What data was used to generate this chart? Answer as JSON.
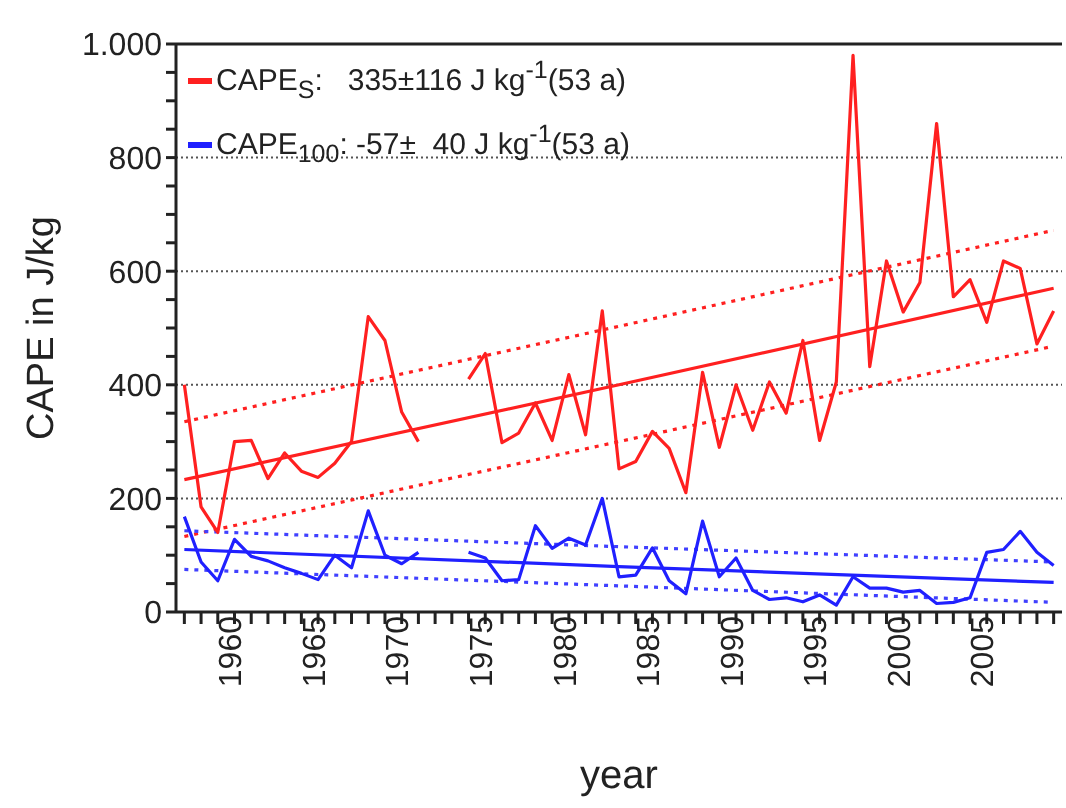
{
  "chart_data": {
    "type": "line",
    "xlabel": "year",
    "ylabel": "CAPE in J/kg",
    "x": [
      1957,
      1958,
      1959,
      1960,
      1961,
      1962,
      1963,
      1964,
      1965,
      1966,
      1967,
      1968,
      1969,
      1970,
      1971,
      1972,
      1973,
      1974,
      1975,
      1976,
      1977,
      1978,
      1979,
      1980,
      1981,
      1982,
      1983,
      1984,
      1985,
      1986,
      1987,
      1988,
      1989,
      1990,
      1991,
      1992,
      1993,
      1994,
      1995,
      1996,
      1997,
      1998,
      1999,
      2000,
      2001,
      2002,
      2003,
      2004,
      2005,
      2006,
      2007,
      2008,
      2009
    ],
    "xlim": [
      1956.5,
      2009.5
    ],
    "xticks": [
      {
        "value": 1957,
        "label": null
      },
      {
        "value": 1958,
        "label": null
      },
      {
        "value": 1959,
        "label": null
      },
      1960,
      {
        "value": 1961,
        "label": null
      },
      {
        "value": 1962,
        "label": null
      },
      {
        "value": 1963,
        "label": null
      },
      {
        "value": 1964,
        "label": null
      },
      1965,
      {
        "value": 1966,
        "label": null
      },
      {
        "value": 1967,
        "label": null
      },
      {
        "value": 1968,
        "label": null
      },
      {
        "value": 1969,
        "label": null
      },
      1970,
      {
        "value": 1971,
        "label": null
      },
      {
        "value": 1972,
        "label": null
      },
      {
        "value": 1973,
        "label": null
      },
      {
        "value": 1974,
        "label": null
      },
      1975,
      {
        "value": 1976,
        "label": null
      },
      {
        "value": 1977,
        "label": null
      },
      {
        "value": 1978,
        "label": null
      },
      {
        "value": 1979,
        "label": null
      },
      1980,
      {
        "value": 1981,
        "label": null
      },
      {
        "value": 1982,
        "label": null
      },
      {
        "value": 1983,
        "label": null
      },
      {
        "value": 1984,
        "label": null
      },
      1985,
      {
        "value": 1986,
        "label": null
      },
      {
        "value": 1987,
        "label": null
      },
      {
        "value": 1988,
        "label": null
      },
      {
        "value": 1989,
        "label": null
      },
      1990,
      {
        "value": 1991,
        "label": null
      },
      {
        "value": 1992,
        "label": null
      },
      {
        "value": 1993,
        "label": null
      },
      {
        "value": 1994,
        "label": null
      },
      1995,
      {
        "value": 1996,
        "label": null
      },
      {
        "value": 1997,
        "label": null
      },
      {
        "value": 1998,
        "label": null
      },
      {
        "value": 1999,
        "label": null
      },
      2000,
      {
        "value": 2001,
        "label": null
      },
      {
        "value": 2002,
        "label": null
      },
      {
        "value": 2003,
        "label": null
      },
      {
        "value": 2004,
        "label": null
      },
      2005,
      {
        "value": 2006,
        "label": null
      },
      {
        "value": 2007,
        "label": null
      },
      {
        "value": 2008,
        "label": null
      },
      {
        "value": 2009,
        "label": null
      }
    ],
    "ylim": [
      0,
      1000
    ],
    "yticks": [
      0,
      {
        "value": 50,
        "label": null
      },
      {
        "value": 100,
        "label": null
      },
      {
        "value": 150,
        "label": null
      },
      200,
      {
        "value": 250,
        "label": null
      },
      {
        "value": 300,
        "label": null
      },
      {
        "value": 350,
        "label": null
      },
      400,
      {
        "value": 450,
        "label": null
      },
      {
        "value": 500,
        "label": null
      },
      {
        "value": 550,
        "label": null
      },
      600,
      {
        "value": 650,
        "label": null
      },
      {
        "value": 700,
        "label": null
      },
      {
        "value": 750,
        "label": null
      },
      800,
      {
        "value": 850,
        "label": null
      },
      {
        "value": 900,
        "label": null
      },
      {
        "value": 950,
        "label": null
      },
      {
        "value": 1000,
        "label": "1.000"
      }
    ],
    "grid": "y",
    "legend": "top left",
    "series": [
      {
        "name": "CAPE$_{S}$:   335±116 J kg$^{-1}$(53 a)",
        "color": "#ff2020",
        "values": [
          400,
          185,
          140,
          300,
          302,
          235,
          280,
          248,
          237,
          262,
          300,
          520,
          478,
          352,
          300,
          null,
          null,
          410,
          455,
          298,
          315,
          368,
          302,
          418,
          312,
          530,
          252,
          265,
          318,
          288,
          210,
          422,
          290,
          400,
          320,
          405,
          350,
          478,
          302,
          405,
          980,
          432,
          618,
          528,
          580,
          860,
          555,
          585,
          510,
          618,
          605,
          472,
          530
        ]
      },
      {
        "name": "CAPE$_{100}$: -57±  40 J kg$^{-1}$(53 a)",
        "color": "#2020ff",
        "values": [
          168,
          88,
          55,
          128,
          98,
          90,
          78,
          68,
          57,
          100,
          78,
          178,
          100,
          85,
          105,
          null,
          null,
          105,
          95,
          55,
          57,
          152,
          112,
          130,
          118,
          200,
          62,
          65,
          113,
          55,
          32,
          160,
          62,
          95,
          38,
          22,
          25,
          18,
          30,
          12,
          62,
          42,
          42,
          35,
          38,
          15,
          17,
          25,
          105,
          110,
          142,
          105,
          82
        ]
      },
      {
        "color": "#ff2020",
        "x": [
          1957,
          1983,
          2009
        ],
        "values": [
          233,
          400,
          570
        ],
        "line_style": "solid"
      },
      {
        "color": "#ff2020",
        "x": [
          1957,
          1983,
          2009
        ],
        "values": [
          335,
          503,
          672
        ],
        "line_style": "dotted"
      },
      {
        "color": "#ff2020",
        "x": [
          1957,
          1983,
          2009
        ],
        "values": [
          133,
          300,
          468
        ],
        "line_style": "dotted"
      },
      {
        "color": "#2020ff",
        "x": [
          1957,
          1983,
          2009
        ],
        "values": [
          110,
          80,
          52
        ],
        "line_style": "solid"
      },
      {
        "color": "#4040ff",
        "x": [
          1957,
          1983,
          2009
        ],
        "values": [
          75,
          46,
          17
        ],
        "line_style": "dotted"
      },
      {
        "color": "#4040ff",
        "x": [
          1957,
          1983,
          2009
        ],
        "values": [
          143,
          115,
          88
        ],
        "line_style": "dotted"
      }
    ]
  }
}
